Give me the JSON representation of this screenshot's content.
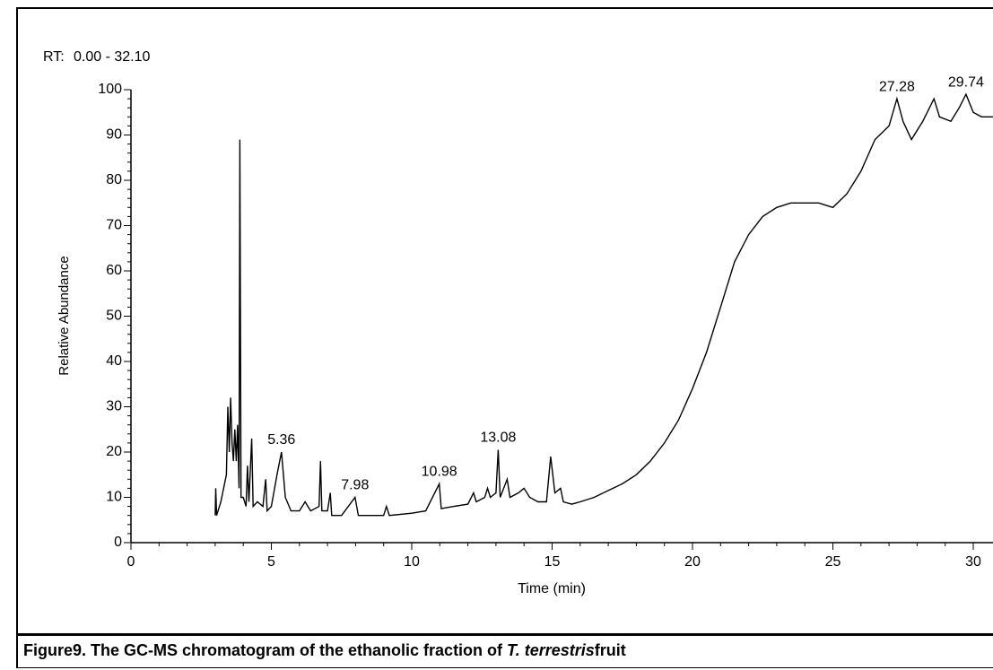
{
  "chart_data": {
    "type": "line",
    "rt_label": "RT:",
    "rt_range": "0.00 - 32.10",
    "xlabel": "Time (min)",
    "ylabel": "Relative Abundance",
    "color": "#000000",
    "range_color": "#2a2aa8",
    "xlim": [
      0,
      30.7
    ],
    "ylim": [
      0,
      100
    ],
    "xticks": [
      0,
      5,
      10,
      15,
      20,
      25,
      30
    ],
    "yticks": [
      0,
      10,
      20,
      30,
      40,
      50,
      60,
      70,
      80,
      90,
      100
    ],
    "x": [
      3.0,
      3.02,
      3.05,
      3.2,
      3.4,
      3.45,
      3.5,
      3.55,
      3.6,
      3.65,
      3.7,
      3.75,
      3.8,
      3.85,
      3.88,
      3.92,
      4.0,
      4.1,
      4.15,
      4.2,
      4.3,
      4.35,
      4.5,
      4.7,
      4.8,
      4.85,
      5.0,
      5.2,
      5.36,
      5.5,
      5.7,
      6.0,
      6.2,
      6.4,
      6.7,
      6.75,
      6.8,
      7.0,
      7.1,
      7.15,
      7.5,
      7.98,
      8.1,
      8.5,
      9.0,
      9.1,
      9.2,
      10.0,
      10.5,
      10.98,
      11.05,
      11.5,
      12.0,
      12.2,
      12.3,
      12.6,
      12.7,
      12.8,
      13.0,
      13.08,
      13.15,
      13.4,
      13.5,
      13.8,
      14.0,
      14.2,
      14.5,
      14.8,
      14.95,
      15.1,
      15.3,
      15.4,
      15.7,
      16.0,
      16.5,
      17.0,
      17.5,
      18.0,
      18.5,
      19.0,
      19.5,
      20.0,
      20.5,
      21.0,
      21.5,
      22.0,
      22.5,
      23.0,
      23.5,
      24.0,
      24.5,
      25.0,
      25.5,
      26.0,
      26.5,
      27.0,
      27.28,
      27.5,
      27.8,
      28.2,
      28.6,
      28.8,
      29.2,
      29.5,
      29.74,
      30.0,
      30.3,
      30.7
    ],
    "values": [
      6,
      12,
      6,
      9,
      15,
      30,
      20,
      32,
      22,
      18,
      25,
      18,
      26,
      12,
      89,
      10,
      10,
      8,
      17,
      9,
      23,
      8,
      9,
      8,
      14,
      7,
      8,
      15,
      20,
      10,
      7,
      7,
      9,
      7,
      8,
      18,
      7,
      7,
      11,
      6,
      6,
      10,
      6,
      6,
      6,
      8,
      6,
      6.5,
      7,
      13,
      7.5,
      8,
      8.5,
      11,
      9,
      10,
      12,
      10,
      11,
      20.5,
      10,
      14,
      10,
      11,
      12,
      10,
      9,
      9,
      19,
      11,
      12,
      9,
      8.5,
      9,
      10,
      11.5,
      13,
      15,
      18,
      22,
      27,
      34,
      42,
      52,
      62,
      68,
      72,
      74,
      75,
      75,
      75,
      74,
      77,
      82,
      89,
      92,
      98,
      93,
      89,
      93,
      98,
      94,
      93,
      96,
      99,
      95,
      94,
      94
    ],
    "annotations": [
      {
        "x": 5.36,
        "y": 20
      },
      {
        "x": 7.98,
        "y": 10
      },
      {
        "x": 10.98,
        "y": 13
      },
      {
        "x": 13.08,
        "y": 20.5
      },
      {
        "x": 27.28,
        "y": 98
      },
      {
        "x": 29.74,
        "y": 99
      }
    ]
  },
  "caption": {
    "before": "Figure9. The GC-MS chromatogram of the ethanolic fraction of ",
    "italic": "T. terrestris",
    "after": "fruit"
  }
}
